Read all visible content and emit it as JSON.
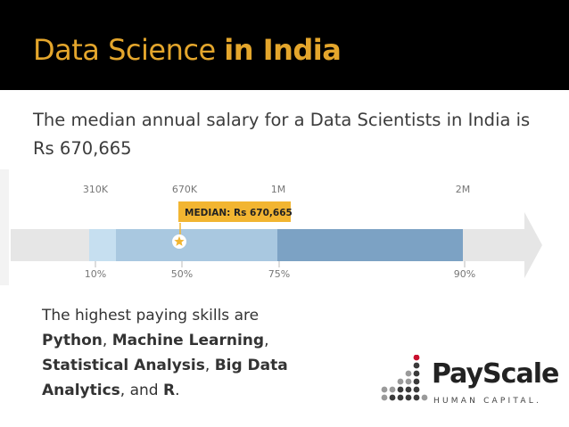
{
  "header": {
    "title_normal": "Data Science",
    "title_bold": "in India"
  },
  "intro": "The median annual salary for a Data Scientists in India is Rs 670,665",
  "chart_data": {
    "type": "bar",
    "top_labels": [
      {
        "text": "310K",
        "value": 310000
      },
      {
        "text": "670K",
        "value": 670000
      },
      {
        "text": "1M",
        "value": 1000000
      },
      {
        "text": "2M",
        "value": 2000000
      }
    ],
    "bottom_labels": [
      "10%",
      "50%",
      "75%",
      "90%"
    ],
    "percentiles": [
      {
        "percentile": 10,
        "value": 310000
      },
      {
        "percentile": 50,
        "value": 670665
      },
      {
        "percentile": 75,
        "value": 1000000
      },
      {
        "percentile": 90,
        "value": 2000000
      }
    ],
    "median_label": "MEDIAN: Rs 670,665",
    "median_value": 670665,
    "colors": {
      "track": "#e6e6e6",
      "p10_p25": "#c6dff0",
      "p25_p75": "#a9c8e0",
      "p75_p90": "#7ca2c4",
      "median_box": "#f2b531",
      "star": "#f2b531"
    }
  },
  "skills": {
    "intro": "The highest paying skills are",
    "items": [
      "Python",
      "Machine Learning",
      "Statistical Analysis",
      "Big Data Analytics",
      "R"
    ],
    "sep1": ", ",
    "sep2": ",",
    "sep3": ", ",
    "sep4": ", and ",
    "end": "."
  },
  "logo": {
    "name": "PayScale",
    "tagline": "HUMAN CAPITAL."
  }
}
